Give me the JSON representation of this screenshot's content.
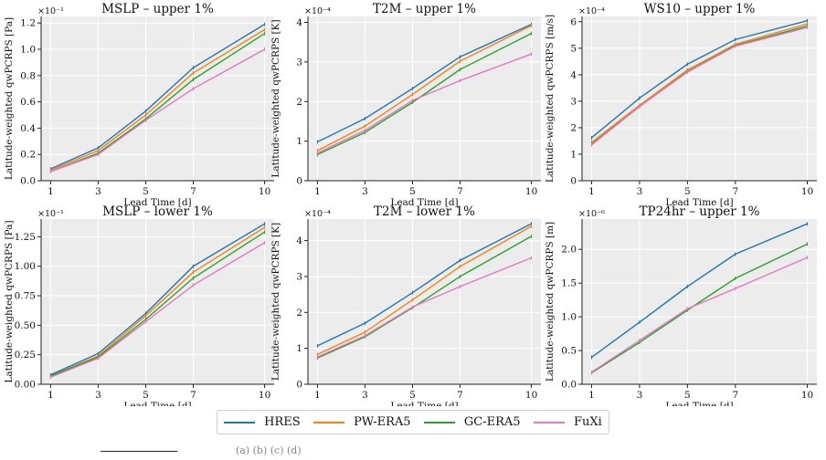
{
  "legend": [
    {
      "name": "HRES",
      "color": "#1f77b4"
    },
    {
      "name": "PW-ERA5",
      "color": "#ff7f0e"
    },
    {
      "name": "GC-ERA5",
      "color": "#2ca02c"
    },
    {
      "name": "FuXi",
      "color": "#e377c2"
    }
  ],
  "footer_text": "(a)                    (b)                    (c)                    (d)",
  "chart_data": [
    {
      "type": "line",
      "title": "MSLP – upper 1%",
      "xlabel": "Lead Time [d]",
      "ylabel": "Latitude-weighted qwPCRPS [Pa]",
      "multiplier": "×10⁻¹",
      "x": [
        1,
        3,
        5,
        7,
        10
      ],
      "xlim": [
        0.6,
        10.4
      ],
      "ylim": [
        0,
        1.25
      ],
      "yticks": [
        0,
        0.2,
        0.4,
        0.6,
        0.8,
        1.0,
        1.2
      ],
      "ytick_labels": [
        "0.0",
        "0.2",
        "0.4",
        "0.6",
        "0.8",
        "1.0",
        "1.2"
      ],
      "series": [
        {
          "name": "HRES",
          "values": [
            0.09,
            0.25,
            0.53,
            0.86,
            1.19
          ]
        },
        {
          "name": "PW-ERA5",
          "values": [
            0.08,
            0.23,
            0.5,
            0.82,
            1.15
          ]
        },
        {
          "name": "GC-ERA5",
          "values": [
            0.07,
            0.21,
            0.47,
            0.77,
            1.12
          ]
        },
        {
          "name": "FuXi",
          "values": [
            0.07,
            0.2,
            0.46,
            0.7,
            1.0
          ]
        }
      ]
    },
    {
      "type": "line",
      "title": "T2M – upper 1%",
      "xlabel": "Lead Time [d]",
      "ylabel": "Latitude-weighted qwPCRPS [K]",
      "multiplier": "×10⁻⁴",
      "x": [
        1,
        3,
        5,
        7,
        10
      ],
      "xlim": [
        0.6,
        10.4
      ],
      "ylim": [
        0,
        4.15
      ],
      "yticks": [
        0,
        1,
        2,
        3,
        4
      ],
      "ytick_labels": [
        "0",
        "1",
        "2",
        "3",
        "4"
      ],
      "series": [
        {
          "name": "HRES",
          "values": [
            0.98,
            1.57,
            2.33,
            3.13,
            3.95
          ]
        },
        {
          "name": "PW-ERA5",
          "values": [
            0.76,
            1.38,
            2.18,
            3.02,
            3.92
          ]
        },
        {
          "name": "GC-ERA5",
          "values": [
            0.66,
            1.22,
            1.98,
            2.81,
            3.72
          ]
        },
        {
          "name": "FuXi",
          "values": [
            0.7,
            1.27,
            2.03,
            2.53,
            3.2
          ]
        }
      ]
    },
    {
      "type": "line",
      "title": "WS10 – upper 1%",
      "xlabel": "Lead Time [d]",
      "ylabel": "Latitude-weighted qwPCRPS [m/s]",
      "multiplier": "×10⁻⁴",
      "x": [
        1,
        3,
        5,
        7,
        10
      ],
      "xlim": [
        0.6,
        10.4
      ],
      "ylim": [
        0,
        6.2
      ],
      "yticks": [
        0,
        1,
        2,
        3,
        4,
        5,
        6
      ],
      "ytick_labels": [
        "0",
        "1",
        "2",
        "3",
        "4",
        "5",
        "6"
      ],
      "series": [
        {
          "name": "HRES",
          "values": [
            1.62,
            3.12,
            4.4,
            5.33,
            6.04
          ]
        },
        {
          "name": "PW-ERA5",
          "values": [
            1.45,
            2.85,
            4.18,
            5.15,
            5.92
          ]
        },
        {
          "name": "GC-ERA5",
          "values": [
            1.38,
            2.8,
            4.12,
            5.1,
            5.84
          ]
        },
        {
          "name": "FuXi",
          "values": [
            1.35,
            2.8,
            4.1,
            5.08,
            5.78
          ]
        }
      ]
    },
    {
      "type": "line",
      "title": "MSLP – lower 1%",
      "xlabel": "Lead Time [d]",
      "ylabel": "Latitude-weighted qwPCRPS [Pa]",
      "multiplier": "×10⁻¹",
      "x": [
        1,
        3,
        5,
        7,
        10
      ],
      "xlim": [
        0.6,
        10.4
      ],
      "ylim": [
        0,
        1.4
      ],
      "yticks": [
        0,
        0.25,
        0.5,
        0.75,
        1.0,
        1.25
      ],
      "ytick_labels": [
        "0.00",
        "0.25",
        "0.50",
        "0.75",
        "1.00",
        "1.25"
      ],
      "series": [
        {
          "name": "HRES",
          "values": [
            0.08,
            0.26,
            0.6,
            1.0,
            1.36
          ]
        },
        {
          "name": "PW-ERA5",
          "values": [
            0.07,
            0.24,
            0.58,
            0.95,
            1.33
          ]
        },
        {
          "name": "GC-ERA5",
          "values": [
            0.07,
            0.23,
            0.55,
            0.9,
            1.29
          ]
        },
        {
          "name": "FuXi",
          "values": [
            0.06,
            0.22,
            0.53,
            0.84,
            1.2
          ]
        }
      ]
    },
    {
      "type": "line",
      "title": "T2M – lower 1%",
      "xlabel": "Lead Time [d]",
      "ylabel": "Latitude-weighted qwPCRPS [K]",
      "multiplier": "×10⁻⁴",
      "x": [
        1,
        3,
        5,
        7,
        10
      ],
      "xlim": [
        0.6,
        10.4
      ],
      "ylim": [
        0,
        4.6
      ],
      "yticks": [
        0,
        1,
        2,
        3,
        4
      ],
      "ytick_labels": [
        "0",
        "1",
        "2",
        "3",
        "4"
      ],
      "series": [
        {
          "name": "HRES",
          "values": [
            1.07,
            1.7,
            2.55,
            3.45,
            4.47
          ]
        },
        {
          "name": "PW-ERA5",
          "values": [
            0.83,
            1.45,
            2.35,
            3.28,
            4.4
          ]
        },
        {
          "name": "GC-ERA5",
          "values": [
            0.73,
            1.32,
            2.13,
            3.0,
            4.12
          ]
        },
        {
          "name": "FuXi",
          "values": [
            0.76,
            1.35,
            2.15,
            2.72,
            3.52
          ]
        }
      ]
    },
    {
      "type": "line",
      "title": "TP24hr – upper 1%",
      "xlabel": "Lead Time [d]",
      "ylabel": "Latitude-weighted qwPCRPS [m]",
      "multiplier": "×10⁻⁶",
      "x": [
        1,
        3,
        5,
        7,
        10
      ],
      "xlim": [
        0.6,
        10.4
      ],
      "ylim": [
        0,
        2.45
      ],
      "yticks": [
        0,
        0.5,
        1.0,
        1.5,
        2.0
      ],
      "ytick_labels": [
        "0.0",
        "0.5",
        "1.0",
        "1.5",
        "2.0"
      ],
      "series": [
        {
          "name": "HRES",
          "values": [
            0.4,
            0.92,
            1.45,
            1.93,
            2.38
          ]
        },
        {
          "name": "GC-ERA5",
          "values": [
            0.17,
            0.62,
            1.1,
            1.57,
            2.08
          ]
        },
        {
          "name": "FuXi",
          "values": [
            0.18,
            0.65,
            1.12,
            1.42,
            1.88
          ]
        }
      ]
    }
  ]
}
